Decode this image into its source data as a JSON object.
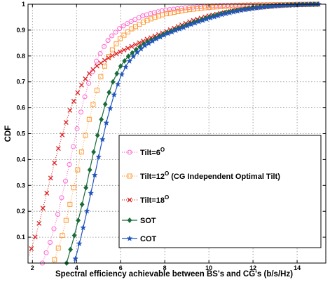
{
  "chart_data": {
    "type": "line",
    "title": "",
    "xlabel": "Spectral efficiency achievable between BS's and CG's (b/s/Hz)",
    "ylabel": "CDF",
    "xlim": [
      1.8,
      15.3
    ],
    "ylim": [
      0,
      1
    ],
    "x_ticks": [
      2,
      4,
      6,
      8,
      10,
      12,
      14
    ],
    "y_ticks": [
      0.1,
      0.2,
      0.3,
      0.4,
      0.5,
      0.6,
      0.7,
      0.8,
      0.9,
      1
    ],
    "grid": true,
    "legend_position": "bottom-right",
    "series": [
      {
        "name": "Tilt=6",
        "name_superscript": "O",
        "name_suffix": "",
        "color": "#ff66cc",
        "marker": "circle",
        "line": "dotted",
        "x": [
          2.45,
          2.8,
          3.1,
          3.4,
          3.7,
          4.0,
          4.3,
          4.6,
          4.9,
          5.2,
          5.5,
          6.0,
          6.5,
          7.0,
          7.5,
          8.0,
          9.0,
          10.0,
          11.0,
          12.0,
          13.0,
          14.0,
          15.0
        ],
        "y": [
          0.0,
          0.08,
          0.17,
          0.28,
          0.39,
          0.51,
          0.62,
          0.71,
          0.78,
          0.83,
          0.87,
          0.91,
          0.935,
          0.955,
          0.967,
          0.977,
          0.987,
          0.993,
          0.996,
          0.998,
          0.999,
          1.0,
          1.0
        ]
      },
      {
        "name": "Tilt=12",
        "name_superscript": "O",
        "name_suffix": "  (CG Independent Optimal Tilt)",
        "color": "#ff9933",
        "marker": "square",
        "line": "dotted",
        "x": [
          2.95,
          3.3,
          3.6,
          3.9,
          4.2,
          4.5,
          4.8,
          5.1,
          5.4,
          5.7,
          6.0,
          6.5,
          7.0,
          7.5,
          8.0,
          9.0,
          10.0,
          11.0,
          12.0,
          13.0,
          14.0,
          15.0
        ],
        "y": [
          0.0,
          0.09,
          0.19,
          0.3,
          0.42,
          0.53,
          0.63,
          0.72,
          0.79,
          0.835,
          0.87,
          0.905,
          0.93,
          0.948,
          0.962,
          0.978,
          0.988,
          0.993,
          0.996,
          0.998,
          0.999,
          1.0
        ]
      },
      {
        "name": "Tilt=18",
        "name_superscript": "O",
        "name_suffix": "",
        "color": "#dd2222",
        "marker": "x",
        "line": "dotted",
        "x": [
          1.85,
          2.2,
          2.5,
          2.8,
          3.1,
          3.4,
          3.7,
          4.0,
          4.3,
          4.6,
          4.9,
          5.3,
          5.7,
          6.2,
          6.7,
          7.2,
          7.8,
          8.5,
          9.2,
          10.0,
          11.0,
          12.0,
          13.0,
          14.0,
          15.0
        ],
        "y": [
          0.03,
          0.12,
          0.22,
          0.32,
          0.42,
          0.51,
          0.59,
          0.65,
          0.7,
          0.735,
          0.76,
          0.785,
          0.805,
          0.825,
          0.845,
          0.865,
          0.885,
          0.91,
          0.935,
          0.955,
          0.973,
          0.985,
          0.993,
          0.998,
          1.0
        ]
      },
      {
        "name": "SOT",
        "name_superscript": "",
        "name_suffix": "",
        "color": "#1a6b3a",
        "marker": "diamond",
        "line": "solid",
        "x": [
          3.55,
          3.85,
          4.15,
          4.45,
          4.75,
          5.05,
          5.35,
          5.65,
          5.95,
          6.3,
          6.7,
          7.1,
          7.6,
          8.1,
          8.7,
          9.3,
          10.0,
          10.7,
          11.5,
          12.3,
          13.1,
          14.0,
          15.0
        ],
        "y": [
          0.0,
          0.09,
          0.19,
          0.3,
          0.42,
          0.53,
          0.63,
          0.7,
          0.755,
          0.795,
          0.825,
          0.85,
          0.87,
          0.89,
          0.91,
          0.93,
          0.95,
          0.967,
          0.98,
          0.989,
          0.995,
          0.998,
          1.0
        ]
      },
      {
        "name": "COT",
        "name_superscript": "",
        "name_suffix": "",
        "color": "#2255bb",
        "marker": "star",
        "line": "solid",
        "x": [
          3.9,
          4.2,
          4.5,
          4.8,
          5.1,
          5.4,
          5.7,
          6.0,
          6.3,
          6.7,
          7.1,
          7.6,
          8.1,
          8.7,
          9.3,
          10.0,
          10.7,
          11.5,
          12.3,
          13.1,
          14.0,
          15.0
        ],
        "y": [
          0.0,
          0.1,
          0.21,
          0.33,
          0.45,
          0.56,
          0.65,
          0.72,
          0.77,
          0.81,
          0.84,
          0.865,
          0.885,
          0.905,
          0.925,
          0.945,
          0.962,
          0.977,
          0.987,
          0.994,
          0.998,
          1.0
        ]
      }
    ]
  }
}
